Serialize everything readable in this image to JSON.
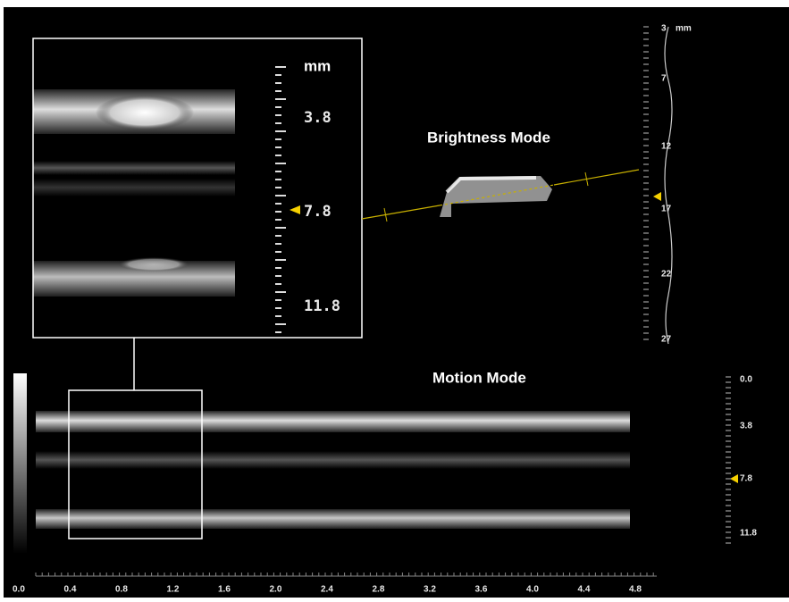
{
  "zoom_panel": {
    "unit": "mm",
    "scale_labels": [
      "3.8",
      "7.8",
      "11.8"
    ]
  },
  "brightness_mode": {
    "title": "Brightness Mode",
    "scale_unit": "mm",
    "scale_labels": [
      "3",
      "7",
      "12",
      "17",
      "22",
      "27"
    ]
  },
  "motion_mode": {
    "title": "Motion Mode",
    "scale_labels": [
      "0.0",
      "3.8",
      "7.8",
      "11.8"
    ],
    "time_labels": [
      "0.0",
      "0.4",
      "0.8",
      "1.2",
      "1.6",
      "2.0",
      "2.4",
      "2.8",
      "3.2",
      "3.6",
      "4.0",
      "4.4",
      "4.8"
    ]
  }
}
